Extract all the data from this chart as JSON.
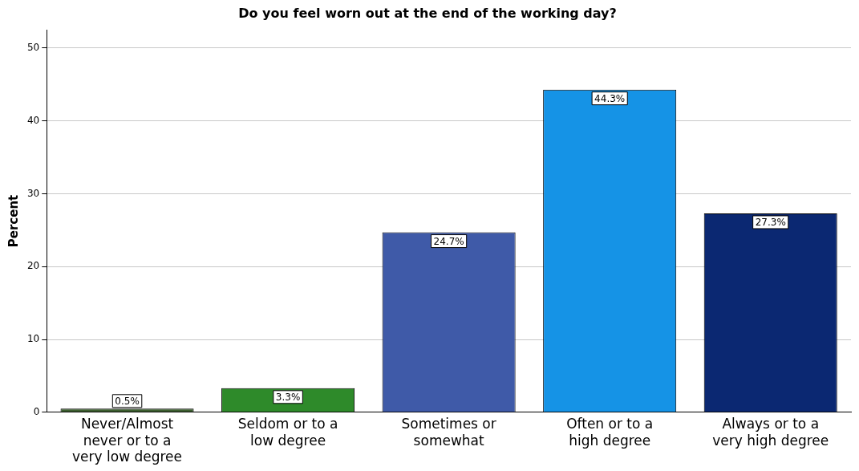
{
  "chart_data": {
    "type": "bar",
    "title": "Do you feel worn out at the end of the working day?",
    "ylabel": "Percent",
    "categories": [
      "Never/Almost never or to a very low degree",
      "Seldom or to a low degree",
      "Sometimes or somewhat",
      "Often or to a high degree",
      "Always or to a very high degree"
    ],
    "values": [
      0.5,
      3.3,
      24.7,
      44.3,
      27.3
    ],
    "colors": [
      "#3d5f30",
      "#2e8a2a",
      "#3f5aa8",
      "#1593e6",
      "#0b2872"
    ],
    "value_labels": [
      "0.5%",
      "3.3%",
      "24.7%",
      "44.3%",
      "27.3%"
    ],
    "ylim": [
      0,
      52.5
    ],
    "yticks": [
      0,
      10,
      20,
      30,
      40,
      50
    ],
    "grid": "y",
    "legend": false
  }
}
